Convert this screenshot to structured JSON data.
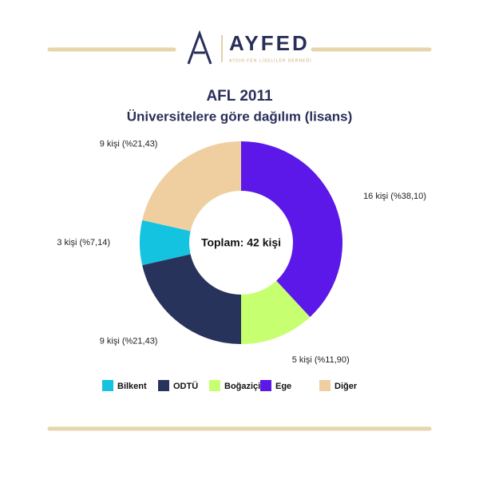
{
  "header": {
    "logo": "AYFED",
    "tagline": "AYDIN FEN LİSELİLER DERNEĞİ"
  },
  "chart_data": {
    "type": "donut",
    "title": "AFL 2011",
    "subtitle": "Üniversitelere göre dağılım (lisans)",
    "center_label": "Toplam: 42 kişi",
    "categories": [
      "Bilkent",
      "ODTÜ",
      "Boğaziçi",
      "Ege",
      "Diğer"
    ],
    "values": [
      3,
      9,
      5,
      16,
      9
    ],
    "value_labels": [
      "3 kişi (%7,14)",
      "9 kişi (%21,43)",
      "5 kişi (%11,90)",
      "16 kişi (%38,10)",
      "9 kişi (%21,43)"
    ],
    "colors": [
      "#14c3e0",
      "#28335c",
      "#c6ff70",
      "#5b18e8",
      "#efcfa0"
    ],
    "legend": "bottom"
  }
}
